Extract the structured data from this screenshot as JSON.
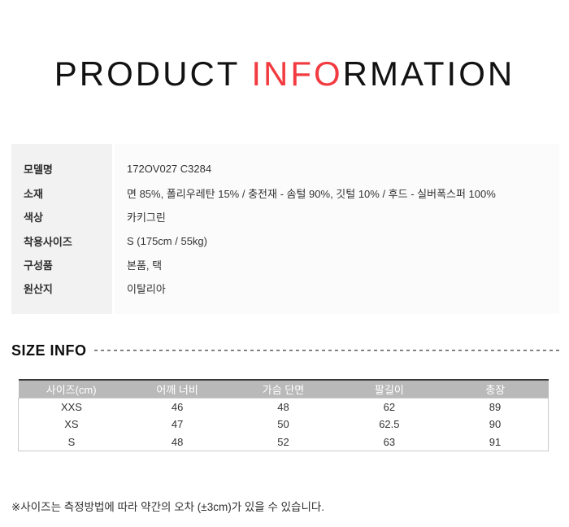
{
  "title": {
    "part_black_left": "PRODUCT ",
    "part_red": "INFO",
    "part_black_right": "RMATION"
  },
  "product_info": {
    "rows": [
      {
        "label": "모델명",
        "value": "172OV027 C3284"
      },
      {
        "label": "소재",
        "value": "면 85%, 폴리우레탄 15% / 충전재 - 솜털 90%, 깃털 10% / 후드 - 실버폭스퍼 100%"
      },
      {
        "label": "색상",
        "value": "카키그린"
      },
      {
        "label": "착용사이즈",
        "value": "S (175cm / 55kg)"
      },
      {
        "label": "구성품",
        "value": "본품, 택"
      },
      {
        "label": "원산지",
        "value": "이탈리아"
      }
    ]
  },
  "size_info": {
    "heading": "SIZE INFO",
    "table": {
      "headers": [
        "사이즈(cm)",
        "어깨 너비",
        "가슴 단면",
        "팔길이",
        "총장"
      ],
      "rows": [
        [
          "XXS",
          "46",
          "48",
          "62",
          "89"
        ],
        [
          "XS",
          "47",
          "50",
          "62.5",
          "90"
        ],
        [
          "S",
          "48",
          "52",
          "63",
          "91"
        ]
      ]
    },
    "note": "※사이즈는 측정방법에 따라 약간의 오차 (±3cm)가 있을 수 있습니다."
  },
  "colors": {
    "accent_red": "#f23b40",
    "size_header_bg": "#b9b9b9",
    "label_column_bg": "#f2f2f2",
    "value_column_bg": "#fbfbfb"
  }
}
